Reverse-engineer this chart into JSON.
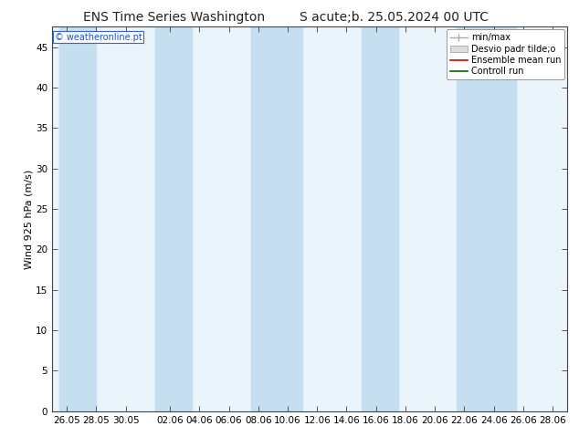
{
  "title_left": "ENS Time Series Washington",
  "title_right": "S acute;b. 25.05.2024 00 UTC",
  "ylabel": "Wind 925 hPa (m/s)",
  "copyright": "© weatheronline.pt",
  "ylim": [
    0,
    47.5
  ],
  "yticks": [
    0,
    5,
    10,
    15,
    20,
    25,
    30,
    35,
    40,
    45
  ],
  "xtick_labels": [
    "26.05",
    "28.05",
    "30.05",
    "02.06",
    "04.06",
    "06.06",
    "08.06",
    "10.06",
    "12.06",
    "14.06",
    "16.06",
    "18.06",
    "20.06",
    "22.06",
    "24.06",
    "26.06",
    "28.06"
  ],
  "xtick_positions": [
    0,
    2,
    4,
    7,
    9,
    11,
    13,
    15,
    17,
    19,
    21,
    23,
    25,
    27,
    29,
    31,
    33
  ],
  "xlim": [
    -1,
    34
  ],
  "background_color": "#ffffff",
  "plot_bg_color": "#eaf4fb",
  "band_color_dark": "#c5dff0",
  "band_color_light": "#eaf4fb",
  "band_dark_ranges": [
    [
      -1,
      1.5
    ],
    [
      5.5,
      8
    ],
    [
      11.5,
      16
    ],
    [
      19.5,
      22
    ],
    [
      25.5,
      30
    ]
  ],
  "band_light_ranges": [
    [
      1.5,
      5.5
    ],
    [
      8,
      11.5
    ],
    [
      16,
      19.5
    ],
    [
      22,
      25.5
    ],
    [
      30,
      34
    ]
  ],
  "title_fontsize": 10,
  "axis_fontsize": 8,
  "tick_fontsize": 7.5,
  "legend_fontsize": 7
}
